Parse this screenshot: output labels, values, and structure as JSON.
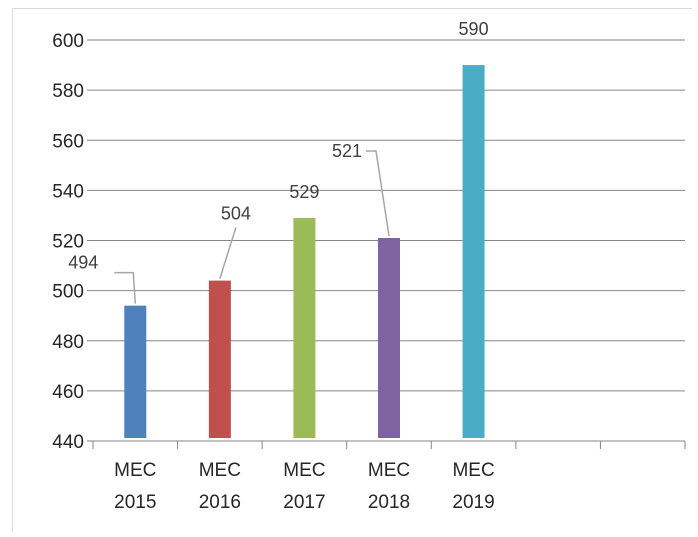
{
  "chart_data": {
    "type": "bar",
    "categories": [
      [
        "MEC",
        "2015"
      ],
      [
        "MEC",
        "2016"
      ],
      [
        "MEC",
        "2017"
      ],
      [
        "MEC",
        "2018"
      ],
      [
        "MEC",
        "2019"
      ],
      [
        "",
        ""
      ],
      [
        "",
        ""
      ]
    ],
    "values": [
      494,
      504,
      529,
      521,
      590,
      null,
      null
    ],
    "data_labels": [
      "494",
      "504",
      "529",
      "521",
      "590",
      "",
      ""
    ],
    "colors": [
      "#4f81bd",
      "#c0504d",
      "#9bbb59",
      "#8064a2",
      "#4bacc6",
      "",
      ""
    ],
    "ylim": [
      440,
      600
    ],
    "y_ticks": [
      "440",
      "460",
      "480",
      "500",
      "520",
      "540",
      "560",
      "580",
      "600"
    ],
    "title": "",
    "xlabel": "",
    "ylabel": "",
    "grid": true,
    "legend": "none"
  }
}
